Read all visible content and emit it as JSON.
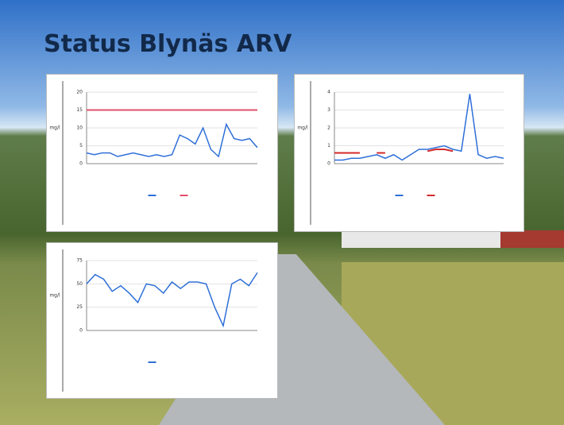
{
  "slide": {
    "title": "Status Blynäs ARV"
  },
  "chart_data": [
    {
      "type": "line",
      "ylabel": "mg/l",
      "ylim": [
        0,
        20
      ],
      "yticks": [
        0,
        5,
        10,
        15,
        20
      ],
      "grid": true,
      "x": [
        1,
        2,
        3,
        4,
        5,
        6,
        7,
        8,
        9,
        10,
        11,
        12,
        13,
        14,
        15,
        16,
        17,
        18,
        19,
        20,
        21,
        22,
        23
      ],
      "series": [
        {
          "color": "#2e6fd8",
          "values": [
            3,
            2.5,
            3,
            3,
            2,
            2.5,
            3,
            2.5,
            2,
            2.5,
            2,
            2.5,
            8,
            7,
            5.5,
            10,
            4,
            2,
            11,
            7,
            6.5,
            7,
            4.5
          ]
        },
        {
          "color": "#e0506a",
          "values": [
            15,
            15,
            15,
            15,
            15,
            15,
            15,
            15,
            15,
            15,
            15,
            15,
            15,
            15,
            15,
            15,
            15,
            15,
            15,
            15,
            15,
            15,
            15
          ]
        }
      ]
    },
    {
      "type": "line",
      "ylabel": "mg/l",
      "ylim": [
        0,
        4
      ],
      "yticks": [
        0,
        1,
        2,
        3,
        4
      ],
      "grid": true,
      "x": [
        1,
        2,
        3,
        4,
        5,
        6,
        7,
        8,
        9,
        10,
        11,
        12,
        13,
        14,
        15,
        16,
        17,
        18,
        19,
        20,
        21
      ],
      "series": [
        {
          "color": "#2e6fd8",
          "values": [
            0.2,
            0.2,
            0.3,
            0.3,
            0.4,
            0.5,
            0.3,
            0.5,
            0.2,
            0.5,
            0.8,
            0.8,
            0.9,
            1,
            0.8,
            0.7,
            3.9,
            0.5,
            0.3,
            0.4,
            0.3
          ]
        },
        {
          "color": "#d42a2a",
          "values": [
            0.6,
            0.6,
            0.6,
            0.6,
            null,
            0.6,
            0.6,
            null,
            null,
            null,
            null,
            0.7,
            0.8,
            0.8,
            0.7,
            null,
            null,
            null,
            null,
            null,
            null
          ]
        }
      ]
    },
    {
      "type": "line",
      "ylabel": "mg/l",
      "ylim": [
        0,
        75
      ],
      "yticks": [
        0,
        25,
        50,
        75
      ],
      "grid": true,
      "x": [
        1,
        2,
        3,
        4,
        5,
        6,
        7,
        8,
        9,
        10,
        11,
        12,
        13,
        14,
        15,
        16,
        17,
        18,
        19,
        20,
        21
      ],
      "series": [
        {
          "color": "#2e6fd8",
          "values": [
            50,
            60,
            55,
            42,
            48,
            40,
            30,
            50,
            48,
            40,
            52,
            45,
            52,
            52,
            50,
            25,
            5,
            50,
            55,
            48,
            62
          ]
        }
      ]
    }
  ]
}
